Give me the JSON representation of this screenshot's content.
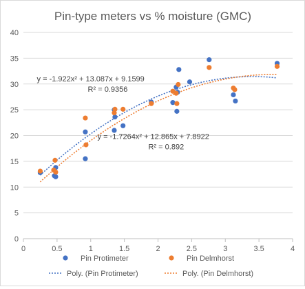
{
  "chart_data": {
    "type": "scatter",
    "title": "Pin-type meters vs % moisture (GMC)",
    "xlim": [
      0,
      4
    ],
    "ylim": [
      0,
      40
    ],
    "x_ticks": [
      0,
      0.5,
      1,
      1.5,
      2,
      2.5,
      3,
      3.5,
      4
    ],
    "x_tick_labels": [
      "0",
      "0.5",
      "1",
      "1.5",
      "2",
      "2.5",
      "3",
      "3.5",
      "4"
    ],
    "y_ticks": [
      0,
      5,
      10,
      15,
      20,
      25,
      30,
      35,
      40
    ],
    "y_tick_labels": [
      "0",
      "5",
      "10",
      "15",
      "20",
      "25",
      "30",
      "35",
      "40"
    ],
    "grid": "horizontal",
    "legend_position": "bottom",
    "series": [
      {
        "name": "Pin Protimeter",
        "color": "#4472c4",
        "x": [
          0.25,
          0.46,
          0.48,
          0.48,
          0.92,
          0.92,
          1.35,
          1.35,
          1.36,
          1.48,
          1.9,
          2.22,
          2.27,
          2.28,
          2.29,
          2.31,
          2.47,
          2.76,
          3.12,
          3.15,
          3.77
        ],
        "y": [
          12.8,
          12.2,
          12.0,
          13.8,
          20.7,
          15.5,
          25.0,
          21.0,
          23.6,
          21.9,
          26.5,
          26.4,
          29.4,
          24.7,
          28.4,
          32.8,
          30.4,
          34.7,
          27.9,
          26.7,
          34.0
        ]
      },
      {
        "name": "Pin Delmhorst",
        "color": "#ed7d31",
        "x": [
          0.25,
          0.45,
          0.47,
          0.48,
          0.92,
          0.93,
          1.35,
          1.36,
          1.48,
          1.9,
          2.22,
          2.27,
          2.28,
          2.3,
          2.76,
          3.12,
          3.14,
          3.77
        ],
        "y": [
          13.1,
          13.3,
          15.2,
          12.9,
          23.4,
          18.2,
          24.4,
          25.1,
          25.1,
          26.2,
          28.6,
          28.2,
          26.2,
          29.9,
          33.2,
          29.2,
          28.9,
          33.4
        ]
      }
    ],
    "trendlines": [
      {
        "name": "Poly. (Pin Protimeter)",
        "color": "#4472c4",
        "type": "polynomial",
        "coefficients": [
          -1.922,
          13.087,
          9.1599
        ],
        "equation": "y = -1.922x² + 13.087x + 9.1599",
        "r2_label": "R² = 0.9356",
        "label_anchor": [
          0.2,
          30.5
        ],
        "x_range": [
          0.25,
          3.77
        ]
      },
      {
        "name": "Poly. (Pin Delmhorst)",
        "color": "#ed7d31",
        "type": "polynomial",
        "coefficients": [
          -1.7264,
          12.865,
          7.8922
        ],
        "equation": "y = -1.7264x² + 12.865x + 7.8922",
        "r2_label": "R² = 0.892",
        "label_anchor": [
          1.1,
          19.3
        ],
        "x_range": [
          0.25,
          3.77
        ]
      }
    ]
  }
}
